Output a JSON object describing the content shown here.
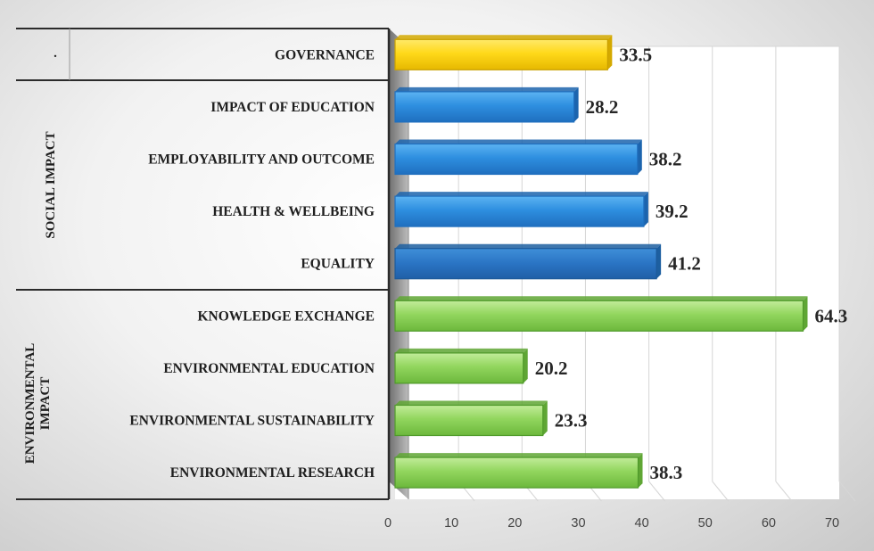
{
  "chart_data": {
    "type": "bar",
    "orientation": "horizontal",
    "categories": [
      "GOVERNANCE",
      "IMPACT OF EDUCATION",
      "EMPLOYABILITY AND OUTCOME",
      "HEALTH & WELLBEING",
      "EQUALITY",
      "KNOWLEDGE EXCHANGE",
      "ENVIRONMENTAL EDUCATION",
      "ENVIRONMENTAL SUSTAINABILITY",
      "ENVIRONMENTAL RESEARCH"
    ],
    "values": [
      33.5,
      28.2,
      38.2,
      39.2,
      41.2,
      64.3,
      20.2,
      23.3,
      38.3
    ],
    "value_labels": [
      "33.5",
      "28.2",
      "38.2",
      "39.2",
      "41.2",
      "64.3",
      "20.2",
      "23.3",
      "38.3"
    ],
    "groups": [
      {
        "label": ".",
        "categories": [
          "GOVERNANCE"
        ]
      },
      {
        "label": "SOCIAL IMPACT",
        "categories": [
          "IMPACT OF EDUCATION",
          "EMPLOYABILITY AND OUTCOME",
          "HEALTH & WELLBEING",
          "EQUALITY"
        ]
      },
      {
        "label": "ENVIRONMENTAL IMPACT",
        "label_lines": [
          "ENVIRONMENTAL",
          "IMPACT"
        ],
        "categories": [
          "KNOWLEDGE EXCHANGE",
          "ENVIRONMENTAL EDUCATION",
          "ENVIRONMENTAL SUSTAINABILITY",
          "ENVIRONMENTAL RESEARCH"
        ]
      }
    ],
    "colors": {
      "governance": "#ffd700",
      "social": "#2e8fe0",
      "social_dark": "#2a74c4",
      "environmental": "#8fd45a"
    },
    "xlim": [
      0,
      70
    ],
    "x_ticks": [
      0,
      10,
      20,
      30,
      40,
      50,
      60,
      70
    ],
    "grid": true,
    "legend": "none",
    "xlabel": "",
    "ylabel": "",
    "title": ""
  }
}
